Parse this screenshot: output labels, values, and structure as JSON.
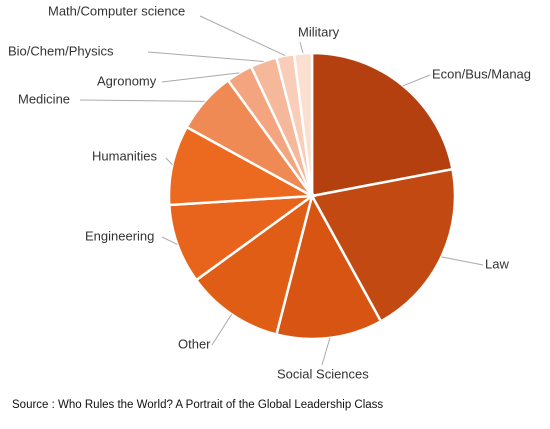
{
  "chart_data": {
    "type": "pie",
    "categories": [
      "Econ/Bus/Manag",
      "Law",
      "Social Sciences",
      "Other",
      "Engineering",
      "Humanities",
      "Medicine",
      "Agronomy",
      "Bio/Chem/Physics",
      "Math/Computer science",
      "Military"
    ],
    "values": [
      22,
      20,
      12,
      11,
      9,
      9,
      7,
      3,
      3,
      2,
      2
    ],
    "colors": [
      "#b5400f",
      "#c24a12",
      "#d75413",
      "#e05d16",
      "#e8631b",
      "#ec6a1f",
      "#f08a55",
      "#f4a57f",
      "#f6b89b",
      "#f9cdb8",
      "#fbdfd0"
    ],
    "source": "Source : Who Rules the World? A Portrait of the Global Leadership Class"
  }
}
